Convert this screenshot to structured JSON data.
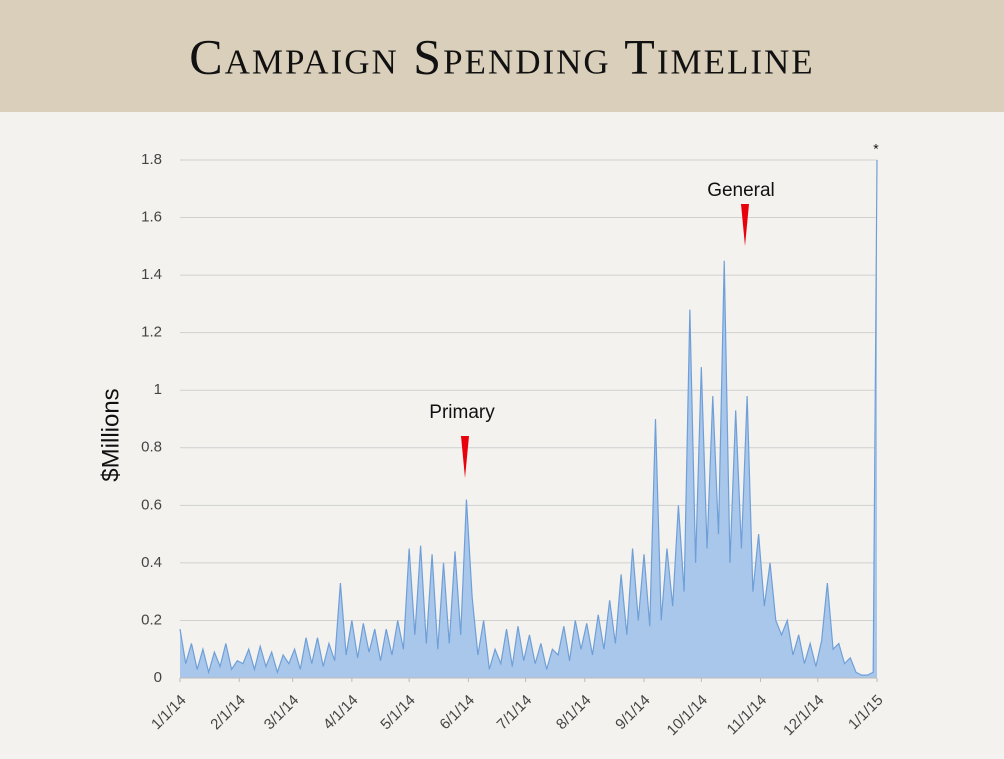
{
  "chart_data": {
    "type": "area",
    "title": "Campaign Spending Timeline",
    "y_label": "$Millions",
    "annotations": [
      "Primary",
      "General",
      "*"
    ],
    "color": "#6f9fd8",
    "x": [
      0,
      3,
      6,
      9,
      12,
      15,
      18,
      21,
      24,
      27,
      30,
      33,
      36,
      39,
      42,
      45,
      48,
      51,
      54,
      57,
      60,
      63,
      66,
      69,
      72,
      75,
      78,
      81,
      84,
      87,
      90,
      93,
      96,
      99,
      102,
      105,
      108,
      111,
      114,
      117,
      120,
      123,
      126,
      129,
      132,
      135,
      138,
      141,
      144,
      147,
      150,
      153,
      156,
      159,
      162,
      165,
      168,
      171,
      174,
      177,
      180,
      183,
      186,
      189,
      192,
      195,
      198,
      201,
      204,
      207,
      210,
      213,
      216,
      219,
      222,
      225,
      228,
      231,
      234,
      237,
      240,
      243,
      246,
      249,
      252,
      255,
      258,
      261,
      264,
      267,
      270,
      273,
      276,
      279,
      282,
      285,
      288,
      291,
      294,
      297,
      300,
      303,
      306,
      309,
      312,
      315,
      318,
      321,
      324,
      327,
      330,
      333,
      336,
      339,
      342,
      345,
      348,
      351,
      354,
      357,
      360,
      363,
      365
    ],
    "values": [
      0.17,
      0.05,
      0.12,
      0.03,
      0.1,
      0.02,
      0.09,
      0.04,
      0.12,
      0.03,
      0.06,
      0.05,
      0.1,
      0.03,
      0.11,
      0.04,
      0.09,
      0.02,
      0.08,
      0.05,
      0.1,
      0.03,
      0.14,
      0.05,
      0.14,
      0.04,
      0.12,
      0.06,
      0.33,
      0.08,
      0.2,
      0.07,
      0.19,
      0.09,
      0.17,
      0.06,
      0.17,
      0.08,
      0.2,
      0.1,
      0.45,
      0.15,
      0.46,
      0.12,
      0.43,
      0.1,
      0.4,
      0.12,
      0.44,
      0.15,
      0.62,
      0.28,
      0.08,
      0.2,
      0.03,
      0.1,
      0.05,
      0.17,
      0.04,
      0.18,
      0.06,
      0.15,
      0.05,
      0.12,
      0.03,
      0.1,
      0.08,
      0.18,
      0.06,
      0.2,
      0.1,
      0.19,
      0.08,
      0.22,
      0.1,
      0.27,
      0.12,
      0.36,
      0.15,
      0.45,
      0.2,
      0.43,
      0.18,
      0.9,
      0.2,
      0.45,
      0.25,
      0.6,
      0.3,
      1.28,
      0.4,
      1.08,
      0.45,
      0.98,
      0.5,
      1.45,
      0.4,
      0.93,
      0.45,
      0.98,
      0.3,
      0.5,
      0.25,
      0.4,
      0.2,
      0.15,
      0.2,
      0.08,
      0.15,
      0.05,
      0.12,
      0.04,
      0.13,
      0.33,
      0.1,
      0.12,
      0.05,
      0.07,
      0.02,
      0.01,
      0.01,
      0.02,
      1.8
    ],
    "xlim": [
      0,
      365
    ],
    "xticks": [
      {
        "value": 0,
        "label": "1/1/14"
      },
      {
        "value": 31,
        "label": "2/1/14"
      },
      {
        "value": 59,
        "label": "3/1/14"
      },
      {
        "value": 90,
        "label": "4/1/14"
      },
      {
        "value": 120,
        "label": "5/1/14"
      },
      {
        "value": 151,
        "label": "6/1/14"
      },
      {
        "value": 181,
        "label": "7/1/14"
      },
      {
        "value": 212,
        "label": "8/1/14"
      },
      {
        "value": 243,
        "label": "9/1/14"
      },
      {
        "value": 273,
        "label": "10/1/14"
      },
      {
        "value": 304,
        "label": "11/1/14"
      },
      {
        "value": 334,
        "label": "12/1/14"
      },
      {
        "value": 365,
        "label": "1/1/15"
      }
    ],
    "ylim": [
      0,
      1.8
    ],
    "yticks": [
      0,
      0.2,
      0.4,
      0.6,
      0.8,
      1,
      1.2,
      1.4,
      1.6,
      1.8
    ],
    "grid": true
  }
}
